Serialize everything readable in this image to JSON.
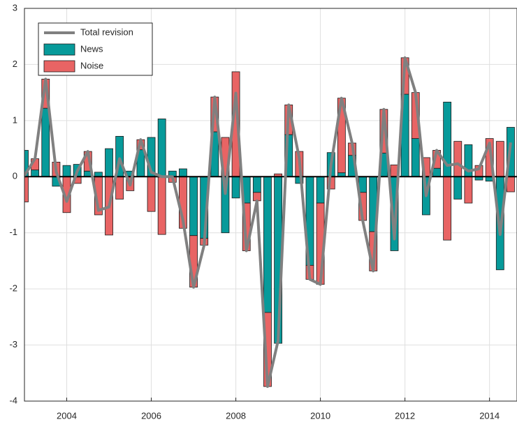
{
  "chart_data": {
    "type": "bar",
    "x": [
      2003,
      2003.25,
      2003.5,
      2003.75,
      2004,
      2004.25,
      2004.5,
      2004.75,
      2005,
      2005.25,
      2005.5,
      2005.75,
      2006,
      2006.25,
      2006.5,
      2006.75,
      2007,
      2007.25,
      2007.5,
      2007.75,
      2008,
      2008.25,
      2008.5,
      2008.75,
      2009,
      2009.25,
      2009.5,
      2009.75,
      2010,
      2010.25,
      2010.5,
      2010.75,
      2011,
      2011.25,
      2011.5,
      2011.75,
      2012,
      2012.25,
      2012.5,
      2012.75,
      2013,
      2013.25,
      2013.5,
      2013.75,
      2014,
      2014.25,
      2014.5
    ],
    "series": [
      {
        "name": "Total revision",
        "color": "#808080",
        "kind": "line",
        "values": [
          0.02,
          0.32,
          1.74,
          0.09,
          -0.44,
          0.1,
          0.45,
          -0.6,
          -0.54,
          0.32,
          -0.15,
          0.66,
          0.08,
          0.0,
          0.0,
          -0.78,
          -1.97,
          -1.22,
          1.42,
          -0.3,
          1.49,
          -1.32,
          -0.43,
          -3.74,
          -2.92,
          1.28,
          0.33,
          -1.83,
          -1.92,
          0.21,
          1.4,
          0.6,
          -0.78,
          -1.68,
          1.2,
          -1.11,
          2.12,
          1.5,
          -0.34,
          0.47,
          0.2,
          0.23,
          0.1,
          0.14,
          0.6,
          -1.03,
          0.61
        ]
      },
      {
        "name": "News",
        "color": "#079a9a",
        "kind": "bar",
        "values": [
          0.47,
          0.12,
          1.22,
          -0.17,
          0.2,
          0.22,
          0.1,
          0.08,
          0.5,
          0.72,
          0.1,
          0.48,
          0.7,
          1.03,
          0.1,
          0.14,
          -1.05,
          -1.1,
          0.8,
          -1.0,
          -0.38,
          -0.47,
          -0.28,
          -2.42,
          -2.97,
          0.75,
          -0.12,
          -1.58,
          -0.47,
          0.43,
          0.07,
          0.38,
          -0.28,
          -0.98,
          0.42,
          -1.32,
          1.47,
          0.68,
          -0.68,
          0.15,
          1.33,
          -0.4,
          0.57,
          -0.06,
          -0.08,
          -1.66,
          0.88
        ]
      },
      {
        "name": "Noise",
        "color": "#e86464",
        "kind": "bar",
        "values": [
          -0.45,
          0.2,
          0.52,
          0.26,
          -0.64,
          -0.12,
          0.35,
          -0.68,
          -1.04,
          -0.4,
          -0.25,
          0.18,
          -0.62,
          -1.03,
          -0.1,
          -0.92,
          -0.92,
          -0.12,
          0.62,
          0.7,
          1.87,
          -0.85,
          -0.15,
          -1.32,
          0.05,
          0.53,
          0.45,
          -0.25,
          -1.45,
          -0.22,
          1.33,
          0.22,
          -0.5,
          -0.7,
          0.78,
          0.21,
          0.65,
          0.82,
          0.34,
          0.32,
          -1.13,
          0.63,
          -0.47,
          0.2,
          0.68,
          0.63,
          -0.27
        ]
      }
    ],
    "xlim": [
      2003,
      2014.65
    ],
    "xticks": [
      2004,
      2006,
      2008,
      2010,
      2012,
      2014
    ],
    "ylim": [
      -4,
      3
    ],
    "yticks": [
      -4,
      -3,
      -2,
      -1,
      0,
      1,
      2,
      3
    ],
    "grid": true,
    "legend": "upper left"
  }
}
